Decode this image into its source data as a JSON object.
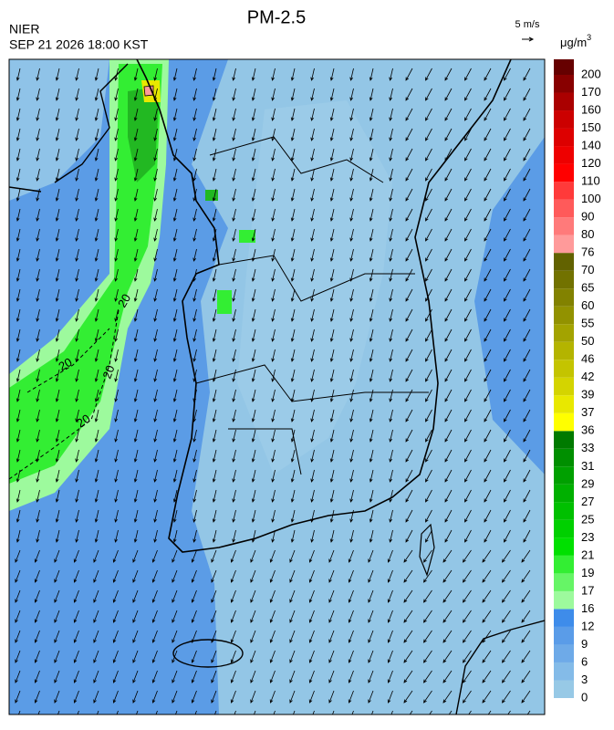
{
  "header": {
    "title": "PM-2.5",
    "agency": "NIER",
    "datetime": "SEP 21 2026 18:00 KST",
    "vector_scale": "5 m/s",
    "unit": {
      "base": "μg/m",
      "sup": "3"
    }
  },
  "colorbar": {
    "levels": [
      0,
      3,
      6,
      9,
      12,
      16,
      17,
      19,
      21,
      23,
      25,
      27,
      29,
      31,
      33,
      36,
      37,
      39,
      42,
      46,
      50,
      55,
      60,
      65,
      70,
      76,
      80,
      90,
      100,
      110,
      120,
      140,
      150,
      160,
      170,
      200
    ],
    "colors": [
      "#97c9e6",
      "#84bbe8",
      "#6eaae8",
      "#5a9ce8",
      "#3e8cea",
      "#9dfa9d",
      "#66f566",
      "#33ee33",
      "#00e000",
      "#00d000",
      "#00c000",
      "#00b000",
      "#00a000",
      "#008f00",
      "#007a00",
      "#ffff00",
      "#e8e800",
      "#d4d400",
      "#c4c400",
      "#b4b400",
      "#a3a300",
      "#929200",
      "#828200",
      "#727200",
      "#626200",
      "#ff9a9a",
      "#ff7a7a",
      "#ff5a5a",
      "#ff3a3a",
      "#ff0000",
      "#ee0000",
      "#dd0000",
      "#cc0000",
      "#aa0000",
      "#880000",
      "#660000"
    ]
  },
  "contour_labels": [
    "20",
    "20",
    "20",
    "20"
  ]
}
